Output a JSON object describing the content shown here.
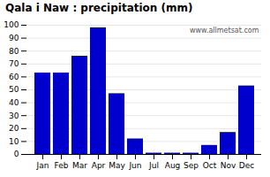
{
  "chart_data": {
    "type": "bar",
    "title": "Qala i Naw : precipitation (mm)",
    "categories": [
      "Jan",
      "Feb",
      "Mar",
      "Apr",
      "May",
      "Jun",
      "Jul",
      "Aug",
      "Sep",
      "Oct",
      "Nov",
      "Dec"
    ],
    "values": [
      63,
      63,
      76,
      98,
      47,
      12,
      1,
      1,
      1,
      7,
      17,
      53
    ],
    "color": "#0000CC",
    "ylim": [
      0,
      100
    ],
    "yticks": [
      0,
      10,
      20,
      30,
      40,
      50,
      60,
      70,
      80,
      90,
      100
    ],
    "grid": true,
    "annotations": [
      "www.allmetsat.com"
    ]
  }
}
